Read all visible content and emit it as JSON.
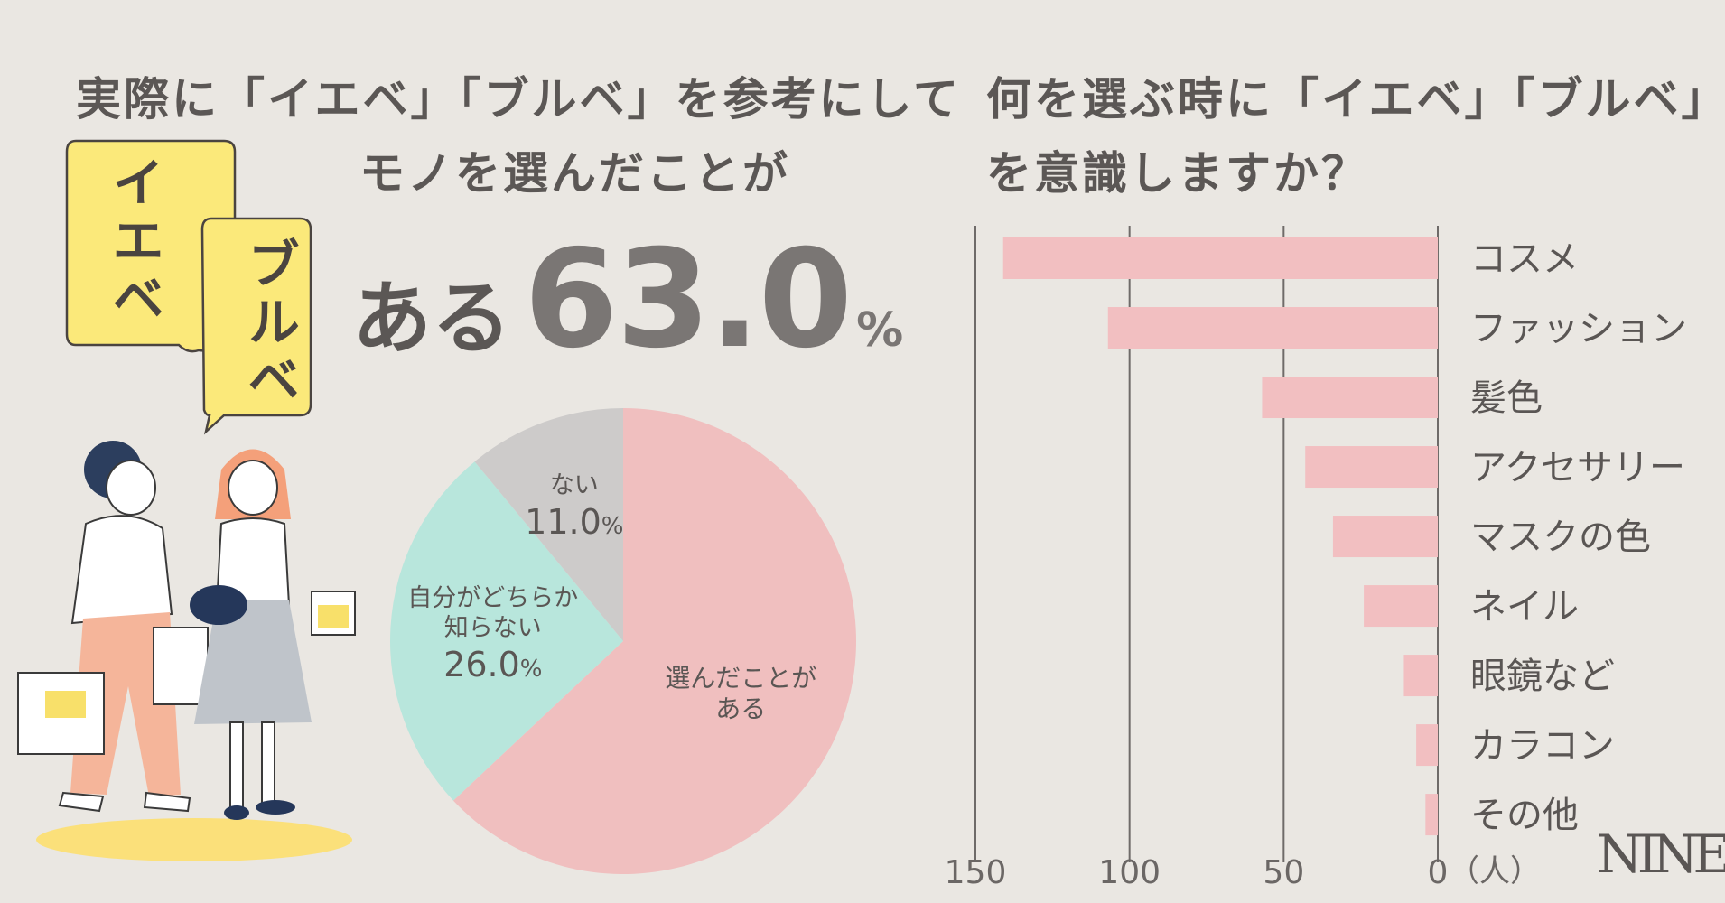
{
  "left_title": {
    "line1": "実際に「イエベ」「ブルベ」を参考にして",
    "line2": "モノを選んだことが"
  },
  "headline": {
    "label": "ある",
    "value": "63.0",
    "unit": "%"
  },
  "bubbles": {
    "yellow_base": "イエベ",
    "blue_base": "ブルベ"
  },
  "right_title": {
    "line1": "何を選ぶ時に「イエベ」「ブルベ」",
    "line2": "を意識しますか？"
  },
  "logo": "NINE",
  "colors": {
    "background": "#EAE7E2",
    "pie_yes": "#F0BFBF",
    "pie_unknown": "#B8E6DC",
    "pie_no": "#CDCBCA",
    "bar": "#F2BFC1",
    "bubble": "#FBE97A",
    "text": "#5A5654"
  },
  "chart_data": [
    {
      "type": "pie",
      "title": "実際に「イエベ」「ブルベ」を参考にしてモノを選んだことが",
      "slices": [
        {
          "label": "選んだことがある",
          "label_lines": [
            "選んだことが",
            "ある"
          ],
          "value": 63.0,
          "value_text": "",
          "color": "#F0BFBF"
        },
        {
          "label": "自分がどちらか知らない",
          "label_lines": [
            "自分がどちらか",
            "知らない"
          ],
          "value": 26.0,
          "value_text": "26.0",
          "color": "#B8E6DC"
        },
        {
          "label": "ない",
          "label_lines": [
            "ない"
          ],
          "value": 11.0,
          "value_text": "11.0",
          "color": "#CDCBCA"
        }
      ],
      "unit": "%"
    },
    {
      "type": "bar",
      "orientation": "horizontal",
      "title": "何を選ぶ時に「イエベ」「ブルベ」を意識しますか？",
      "categories": [
        "コスメ",
        "ファッション",
        "髪色",
        "アクセサリー",
        "マスクの色",
        "ネイル",
        "眼鏡など",
        "カラコン",
        "その他"
      ],
      "values": [
        141,
        107,
        57,
        43,
        34,
        24,
        11,
        7,
        4
      ],
      "xlim": [
        0,
        150
      ],
      "x_ticks": [
        150,
        100,
        50,
        0
      ],
      "x_unit": "（人）",
      "x_reversed": true
    }
  ]
}
